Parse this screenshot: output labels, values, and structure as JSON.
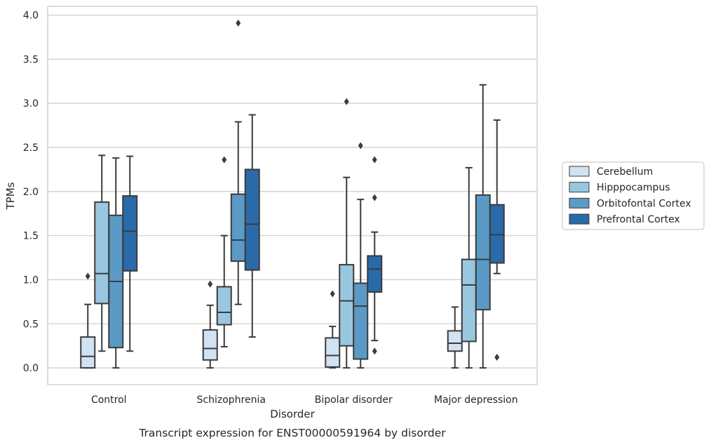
{
  "chart_data": {
    "type": "boxplot",
    "title": "",
    "caption": "Transcript expression for ENST00000591964 by disorder",
    "xlabel": "Disorder",
    "ylabel": "TPMs",
    "ylim": [
      -0.19,
      4.1
    ],
    "yticks": [
      0.0,
      0.5,
      1.0,
      1.5,
      2.0,
      2.5,
      3.0,
      3.5,
      4.0
    ],
    "ytick_labels": [
      "0.0",
      "0.5",
      "1.0",
      "1.5",
      "2.0",
      "2.5",
      "3.0",
      "3.5",
      "4.0"
    ],
    "grid": "horizontal",
    "legend_position": "right",
    "categories": [
      "Control",
      "Schizophrenia",
      "Bipolar disorder",
      "Major depression"
    ],
    "series": [
      {
        "name": "Cerebellum",
        "color": "#d1e2f2",
        "boxes": [
          {
            "low": 0.0,
            "q1": 0.0,
            "median": 0.13,
            "q3": 0.35,
            "high": 0.72,
            "outliers": [
              1.04
            ]
          },
          {
            "low": 0.0,
            "q1": 0.09,
            "median": 0.22,
            "q3": 0.43,
            "high": 0.71,
            "outliers": [
              0.95
            ]
          },
          {
            "low": 0.0,
            "q1": 0.01,
            "median": 0.14,
            "q3": 0.34,
            "high": 0.47,
            "outliers": [
              0.84
            ]
          },
          {
            "low": 0.0,
            "q1": 0.19,
            "median": 0.28,
            "q3": 0.42,
            "high": 0.69,
            "outliers": []
          }
        ]
      },
      {
        "name": "Hipppocampus",
        "color": "#9ac7e0",
        "boxes": [
          {
            "low": 0.19,
            "q1": 0.73,
            "median": 1.07,
            "q3": 1.88,
            "high": 2.41,
            "outliers": []
          },
          {
            "low": 0.24,
            "q1": 0.49,
            "median": 0.63,
            "q3": 0.92,
            "high": 1.5,
            "outliers": [
              2.36
            ]
          },
          {
            "low": 0.0,
            "q1": 0.25,
            "median": 0.76,
            "q3": 1.17,
            "high": 2.16,
            "outliers": [
              3.02
            ]
          },
          {
            "low": 0.0,
            "q1": 0.3,
            "median": 0.94,
            "q3": 1.23,
            "high": 2.27,
            "outliers": []
          }
        ]
      },
      {
        "name": "Orbitofontal Cortex",
        "color": "#5b9ac6",
        "boxes": [
          {
            "low": 0.0,
            "q1": 0.23,
            "median": 0.98,
            "q3": 1.73,
            "high": 2.38,
            "outliers": []
          },
          {
            "low": 0.72,
            "q1": 1.21,
            "median": 1.45,
            "q3": 1.97,
            "high": 2.79,
            "outliers": [
              3.91
            ]
          },
          {
            "low": 0.0,
            "q1": 0.1,
            "median": 0.7,
            "q3": 0.96,
            "high": 1.91,
            "outliers": [
              2.52
            ]
          },
          {
            "low": 0.0,
            "q1": 0.66,
            "median": 1.23,
            "q3": 1.96,
            "high": 3.21,
            "outliers": []
          }
        ]
      },
      {
        "name": "Prefrontal Cortex",
        "color": "#2a6aa8",
        "boxes": [
          {
            "low": 0.19,
            "q1": 1.1,
            "median": 1.55,
            "q3": 1.95,
            "high": 2.4,
            "outliers": []
          },
          {
            "low": 0.35,
            "q1": 1.11,
            "median": 1.63,
            "q3": 2.25,
            "high": 2.87,
            "outliers": []
          },
          {
            "low": 0.31,
            "q1": 0.86,
            "median": 1.12,
            "q3": 1.27,
            "high": 1.54,
            "outliers": [
              0.19,
              1.93,
              2.36
            ]
          },
          {
            "low": 1.07,
            "q1": 1.19,
            "median": 1.51,
            "q3": 1.85,
            "high": 2.81,
            "outliers": [
              0.12
            ]
          }
        ]
      }
    ]
  }
}
